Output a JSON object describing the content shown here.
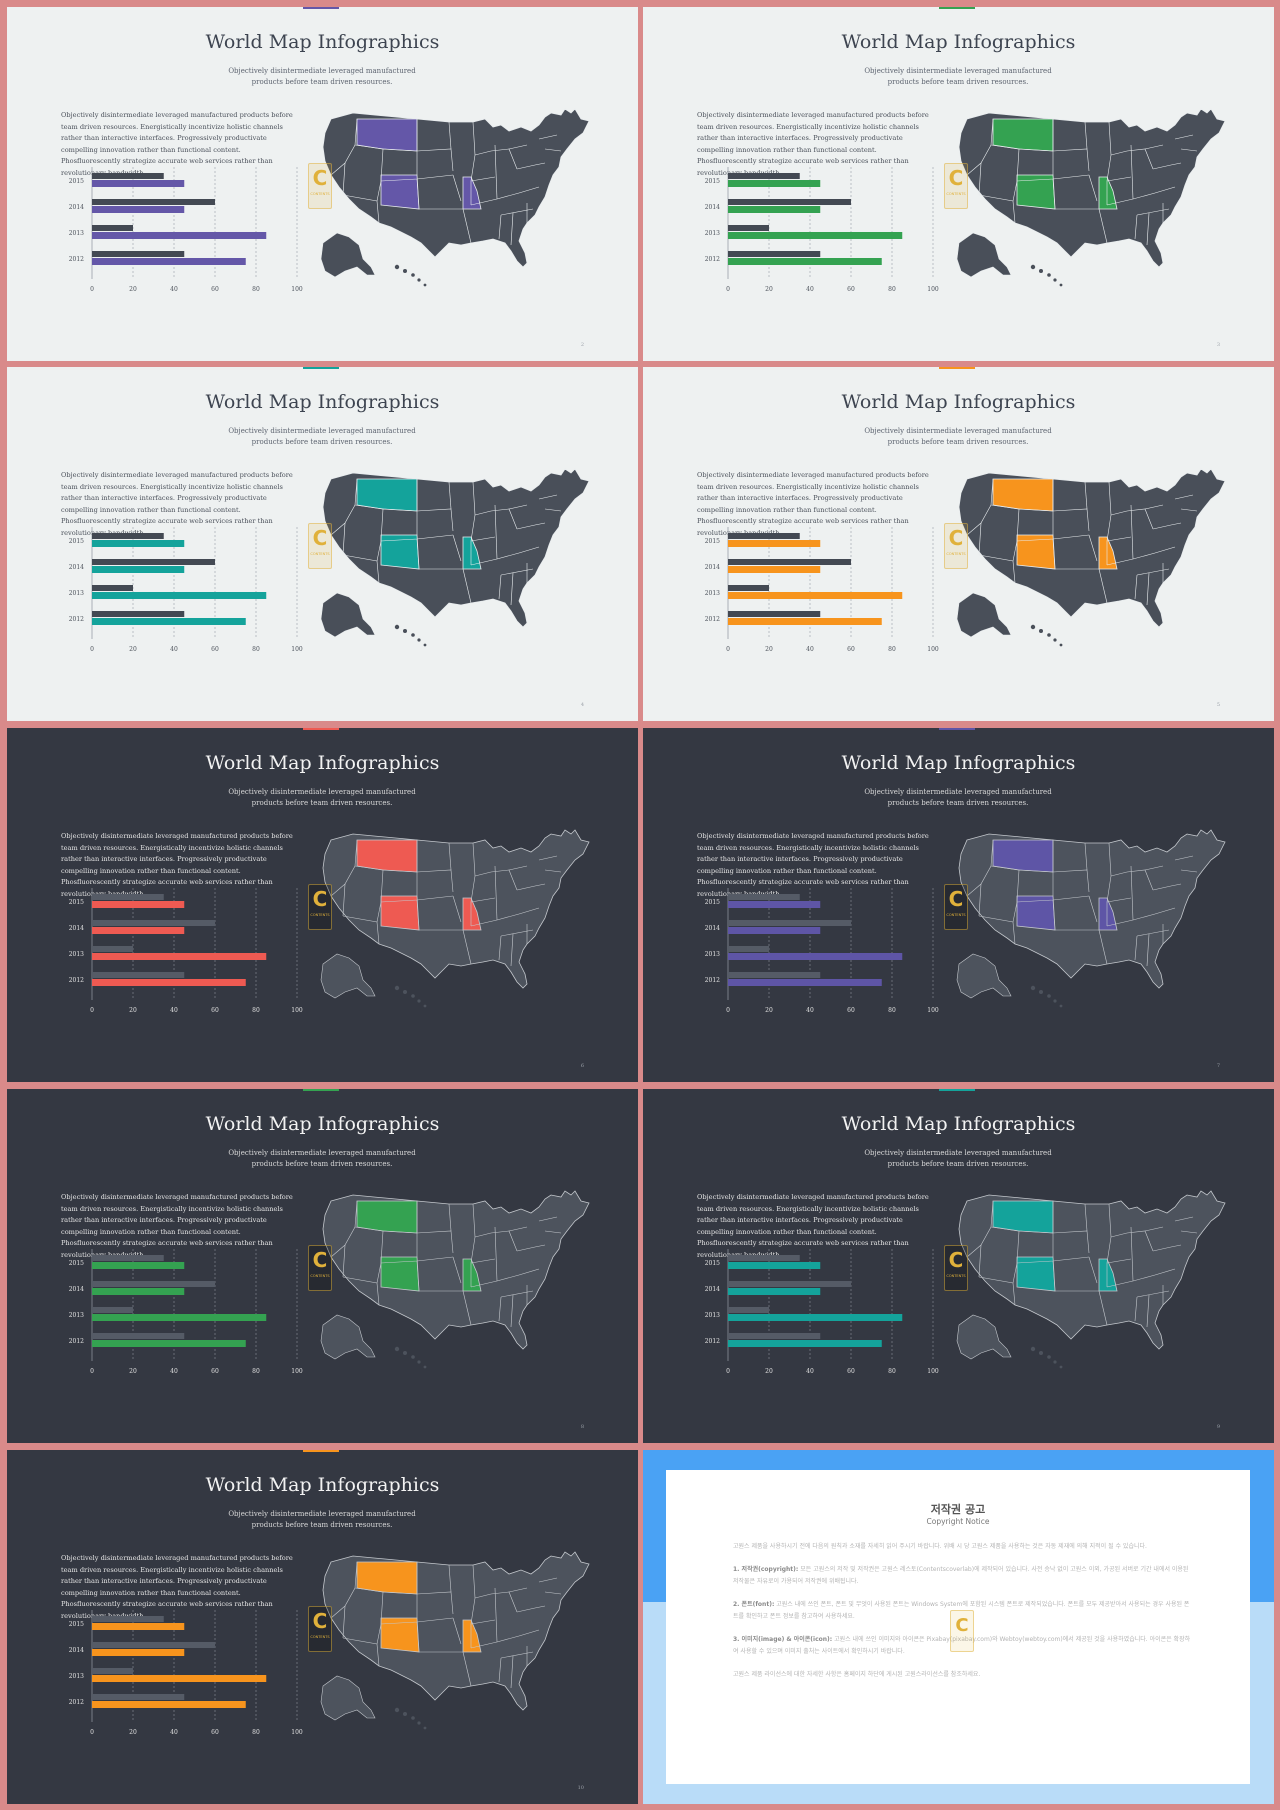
{
  "slides": [
    {
      "title": "World Map Infographics",
      "subtitle": "Objectively disintermediate leveraged manufactured products before team driven resources.",
      "body": "Objectively disintermediate leveraged manufactured products before team driven resources. Energistically incentivize holistic channels rather than interactive interfaces. Progressively productivate compelling innovation rather than functional content. Phosfluorescently strategize accurate web services rather than revolutionary bandwidth.",
      "theme": "light",
      "accent": "#6457a8",
      "page": "2"
    },
    {
      "title": "World Map Infographics",
      "subtitle": "Objectively disintermediate leveraged manufactured products before team driven resources.",
      "body": "Objectively disintermediate leveraged manufactured products before team driven resources. Energistically incentivize holistic channels rather than interactive interfaces. Progressively productivate compelling innovation rather than functional content. Phosfluorescently strategize accurate web services rather than revolutionary bandwidth.",
      "theme": "light",
      "accent": "#34a251",
      "page": "3"
    },
    {
      "title": "World Map Infographics",
      "subtitle": "Objectively disintermediate leveraged manufactured products before team driven resources.",
      "body": "Objectively disintermediate leveraged manufactured products before team driven resources. Energistically incentivize holistic channels rather than interactive interfaces. Progressively productivate compelling innovation rather than functional content. Phosfluorescently strategize accurate web services rather than revolutionary bandwidth.",
      "theme": "light",
      "accent": "#14a39b",
      "page": "4"
    },
    {
      "title": "World Map Infographics",
      "subtitle": "Objectively disintermediate leveraged manufactured products before team driven resources.",
      "body": "Objectively disintermediate leveraged manufactured products before team driven resources. Energistically incentivize holistic channels rather than interactive interfaces. Progressively productivate compelling innovation rather than functional content. Phosfluorescently strategize accurate web services rather than revolutionary bandwidth.",
      "theme": "light",
      "accent": "#f7941d",
      "page": "5"
    },
    {
      "title": "World Map Infographics",
      "subtitle": "Objectively disintermediate leveraged manufactured products before team driven resources.",
      "body": "Objectively disintermediate leveraged manufactured products before team driven resources. Energistically incentivize holistic channels rather than interactive interfaces. Progressively productivate compelling innovation rather than functional content. Phosfluorescently strategize accurate web services rather than revolutionary bandwidth.",
      "theme": "dark",
      "accent": "#ee5a52",
      "page": "6"
    },
    {
      "title": "World Map Infographics",
      "subtitle": "Objectively disintermediate leveraged manufactured products before team driven resources.",
      "body": "Objectively disintermediate leveraged manufactured products before team driven resources. Energistically incentivize holistic channels rather than interactive interfaces. Progressively productivate compelling innovation rather than functional content. Phosfluorescently strategize accurate web services rather than revolutionary bandwidth.",
      "theme": "dark",
      "accent": "#5e55a6",
      "page": "7"
    },
    {
      "title": "World Map Infographics",
      "subtitle": "Objectively disintermediate leveraged manufactured products before team driven resources.",
      "body": "Objectively disintermediate leveraged manufactured products before team driven resources. Energistically incentivize holistic channels rather than interactive interfaces. Progressively productivate compelling innovation rather than functional content. Phosfluorescently strategize accurate web services rather than revolutionary bandwidth.",
      "theme": "dark",
      "accent": "#34a251",
      "page": "8"
    },
    {
      "title": "World Map Infographics",
      "subtitle": "Objectively disintermediate leveraged manufactured products before team driven resources.",
      "body": "Objectively disintermediate leveraged manufactured products before team driven resources. Energistically incentivize holistic channels rather than interactive interfaces. Progressively productivate compelling innovation rather than functional content. Phosfluorescently strategize accurate web services rather than revolutionary bandwidth.",
      "theme": "dark",
      "accent": "#14a39b",
      "page": "9"
    },
    {
      "title": "World Map Infographics",
      "subtitle": "Objectively disintermediate leveraged manufactured products before team driven resources.",
      "body": "Objectively disintermediate leveraged manufactured products before team driven resources. Energistically incentivize holistic channels rather than interactive interfaces. Progressively productivate compelling innovation rather than functional content. Phosfluorescently strategize accurate web services rather than revolutionary bandwidth.",
      "theme": "dark",
      "accent": "#f7941d",
      "page": "10"
    }
  ],
  "chart_data": {
    "type": "bar",
    "orientation": "horizontal",
    "categories": [
      "2015",
      "2014",
      "2013",
      "2012"
    ],
    "series": [
      {
        "values": [
          35,
          60,
          20,
          45
        ],
        "color": "dark-gray"
      },
      {
        "values": [
          45,
          45,
          85,
          75
        ],
        "color": "accent"
      }
    ],
    "xticks": [
      "0",
      "20",
      "40",
      "60",
      "80",
      "100"
    ],
    "xlim": [
      0,
      100
    ],
    "grid": "vertical-dashed"
  },
  "logo": {
    "letter": "C",
    "text": "CONTENTS"
  },
  "copyright": {
    "title": "저작권 공고",
    "subtitle": "Copyright Notice",
    "intro": "고원스 제품을 사용하시기 전에 다음의 원칙과 소재를 자세히 읽어 주시기 바랍니다. 위배 시 당 고원스 제품을 사용하는 것은 자동 제재에 의해 지적이 될 수 있습니다.",
    "sections": [
      {
        "label": "1. 저작권(copyright):",
        "text": "모든 고원스의 저작 및 저작권은 고원스 레스토(Contentscoverlab)에 제작되어 있습니다. 사전 승낙 없이 고원스 이외, 가공된 서버로 기간 내에서 이용된 저작물은 자유로이 가용되어 저작권에 위배됩니다."
      },
      {
        "label": "2. 폰트(font):",
        "text": "고원스 내에 쓰인 폰트, 폰트 및 무엇이 사용된 폰트는 Windows System에 포함된 시스템 폰트로 제작되었습니다. 폰트를 모두 제공받아서 사용되는 경우 사용된 폰트를 확인하고 폰트 정보를 참고하여 사용하세요."
      },
      {
        "label": "3. 이미지(image) & 아이콘(icon):",
        "text": "고원스 내에 쓰인 이미지와 아이콘은 Pixabay(pixabay.com)와 Webtoy(webtoy.com)에서 제공된 것을 사용하였습니다. 아이콘은 확장하여 사용할 수 있으며 이미지 출처는 사이트에서 확인하시기 바랍니다."
      }
    ],
    "footer": "고원스 제품 라이선스에 대한 자세한 사항은 홈페이지 하단에 게시된 고원스라이선스를 참조하세요."
  }
}
